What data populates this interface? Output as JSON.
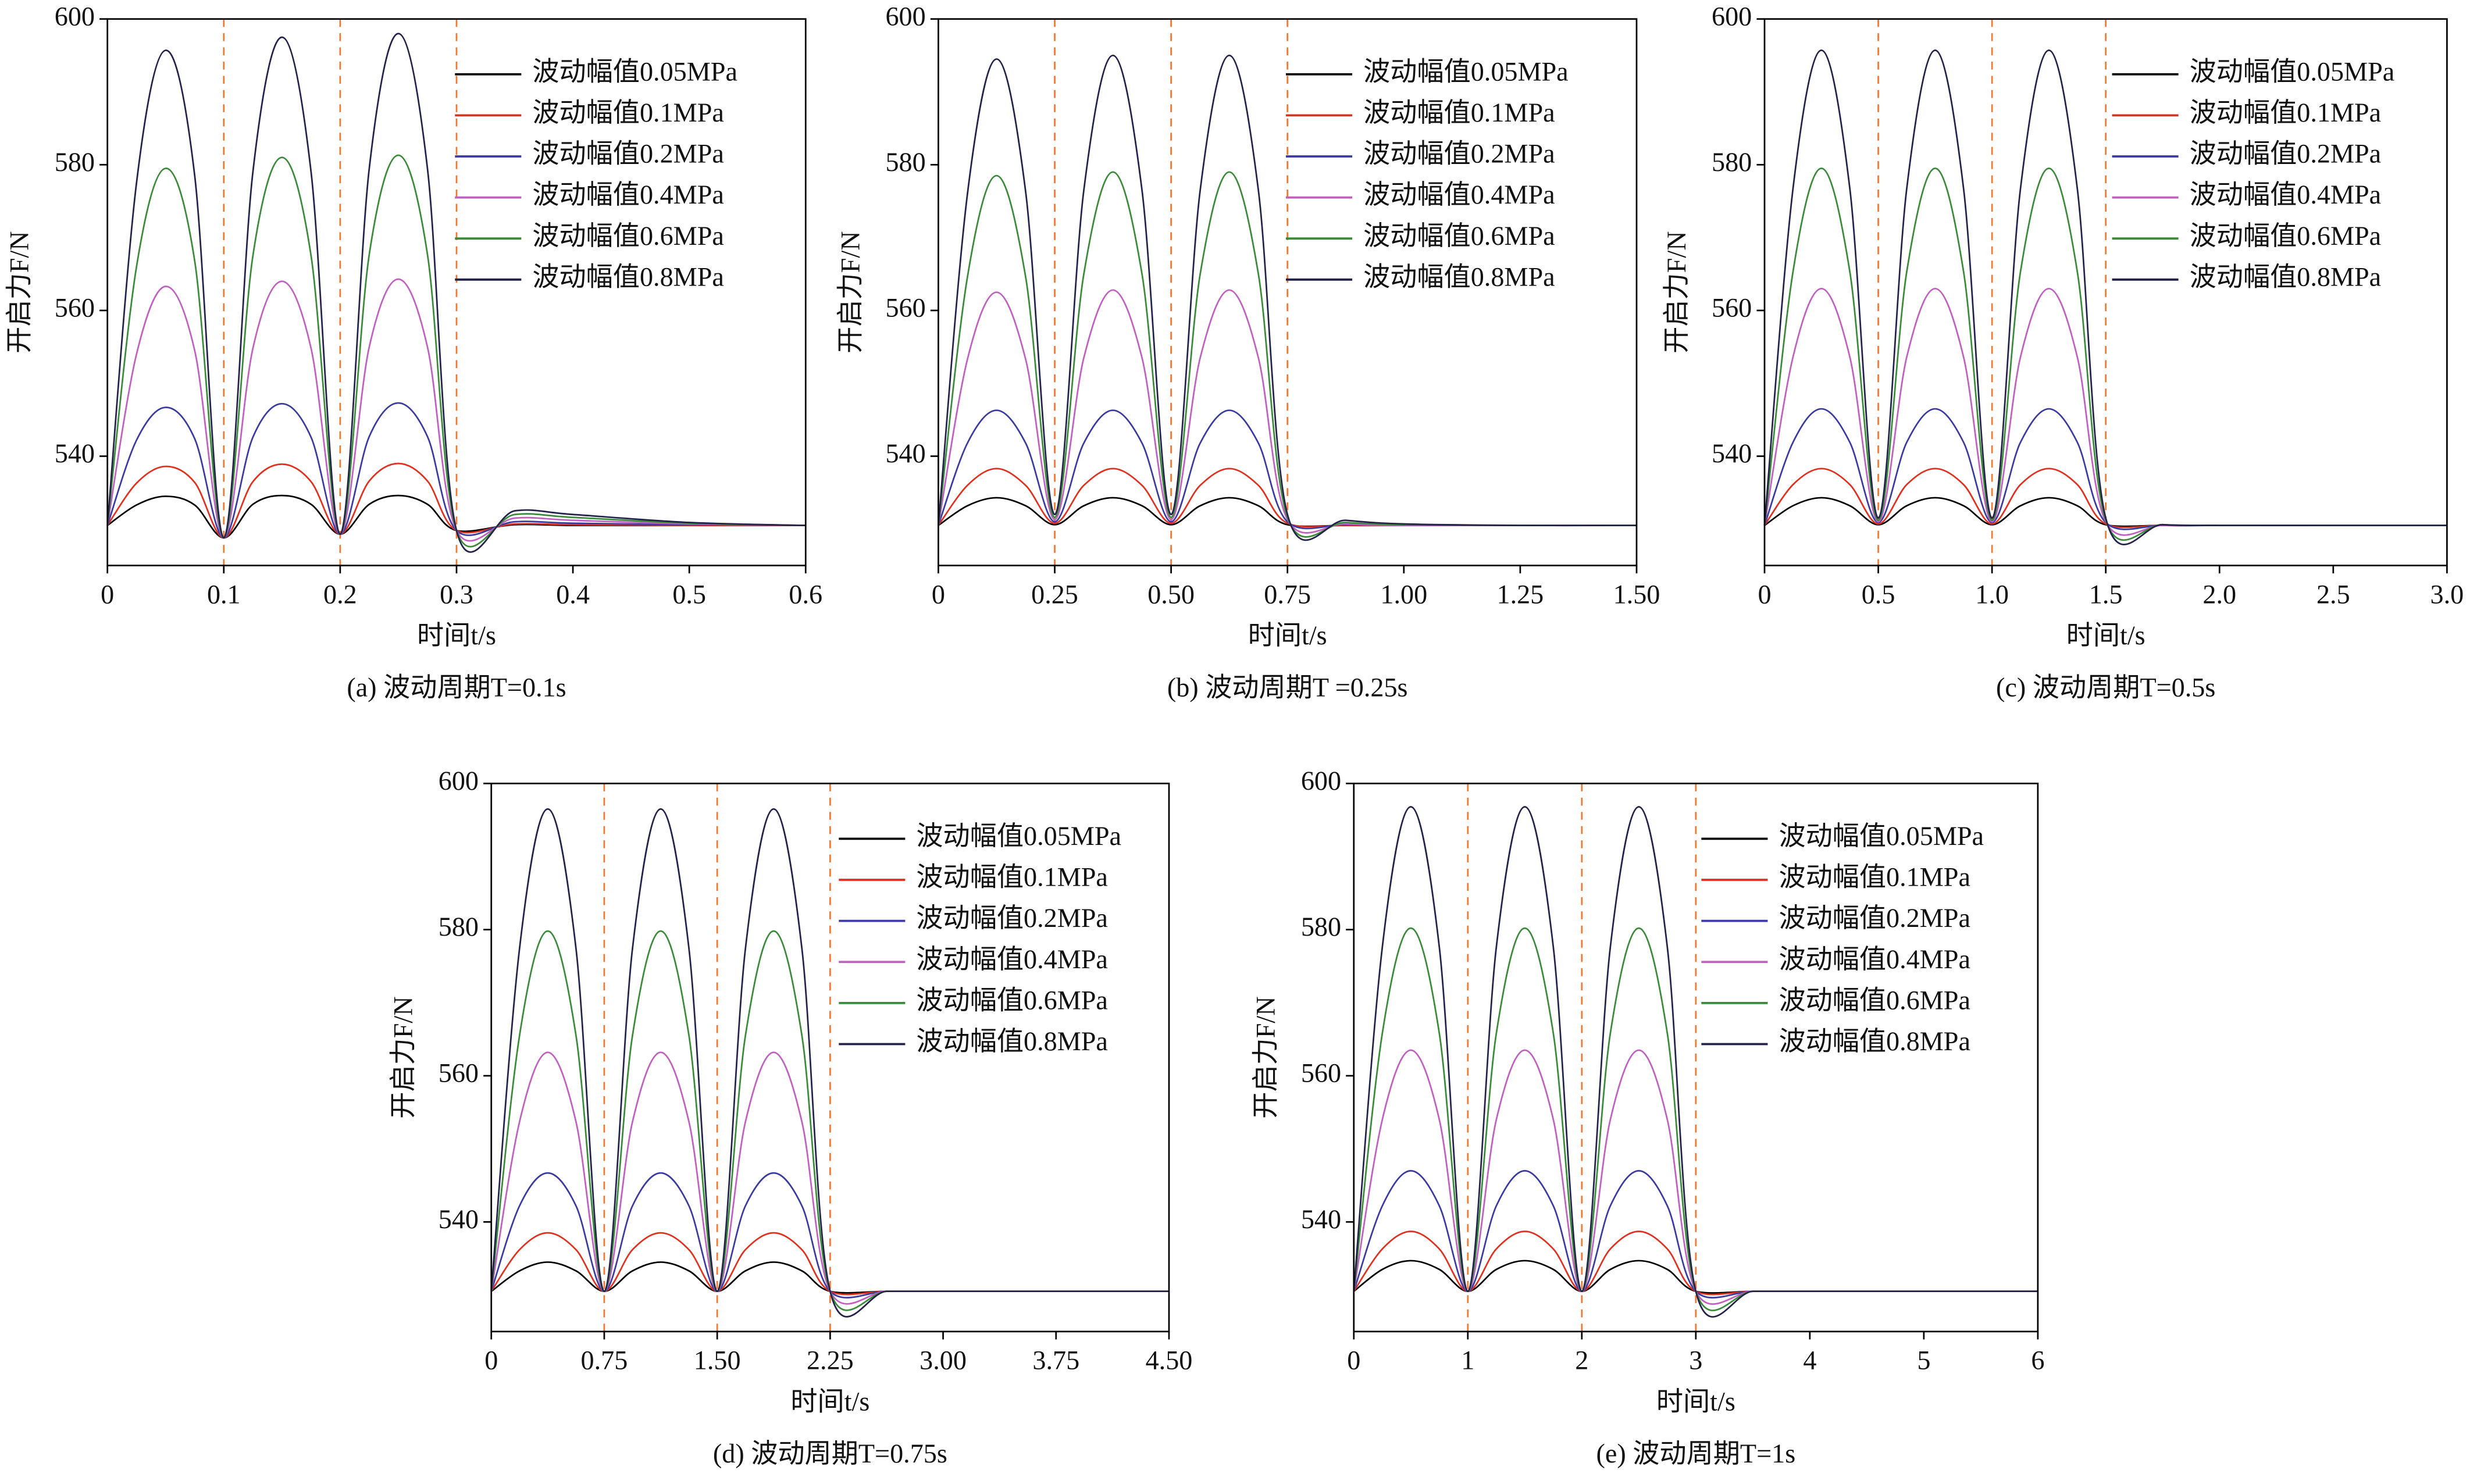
{
  "chart_data": [
    {
      "type": "line",
      "caption": "(a) 波动周期T=0.1s",
      "xlabel": "时间t/s",
      "ylabel": "开启力F/N",
      "legend": "upper right",
      "x": [
        0,
        0.025,
        0.05,
        0.075,
        0.1,
        0.125,
        0.15,
        0.175,
        0.2,
        0.225,
        0.25,
        0.275,
        0.3,
        0.35,
        0.4,
        0.5,
        0.6
      ],
      "xlim": [
        0,
        0.6
      ],
      "xticks": [
        0,
        0.1,
        0.2,
        0.3,
        0.4,
        0.5,
        0.6
      ],
      "ylim": [
        525,
        600
      ],
      "yticks": [
        540,
        560,
        580,
        600
      ],
      "markers": [
        0.1,
        0.2,
        0.3
      ],
      "marker_color": "#f07830",
      "series": [
        {
          "name": "波动幅值0.05MPa",
          "color": "#000000",
          "values": [
            530.5,
            533.3,
            534.5,
            533.3,
            528.8,
            533.4,
            534.6,
            533.4,
            529.3,
            533.4,
            534.6,
            533.4,
            529.8,
            530.6,
            530.5,
            530.5,
            530.5
          ]
        },
        {
          "name": "波动幅值0.1MPa",
          "color": "#e0301e",
          "values": [
            530.5,
            536.3,
            538.6,
            536.4,
            528.8,
            536.5,
            538.9,
            536.5,
            529.3,
            536.6,
            539,
            536.6,
            529.8,
            530.7,
            530.6,
            530.5,
            530.5
          ]
        },
        {
          "name": "波动幅值0.2MPa",
          "color": "#3a3aa0",
          "values": [
            530.5,
            542.2,
            546.7,
            542.4,
            528.8,
            542.6,
            547.2,
            542.6,
            529.3,
            542.7,
            547.3,
            542.7,
            529.8,
            531,
            530.8,
            530.6,
            530.5
          ]
        },
        {
          "name": "波动幅值0.4MPa",
          "color": "#c060c0",
          "values": [
            530.5,
            554,
            563.3,
            554.5,
            528.8,
            554.8,
            564,
            554.8,
            529.3,
            555,
            564.3,
            555,
            529.8,
            531.5,
            531.2,
            530.7,
            530.5
          ]
        },
        {
          "name": "波动幅值0.6MPa",
          "color": "#3a8a3a",
          "values": [
            530.5,
            566,
            579.5,
            566.8,
            528.8,
            567.5,
            581,
            567.5,
            529.3,
            567.7,
            581.3,
            567.7,
            529.8,
            532,
            531.6,
            530.8,
            530.5
          ]
        },
        {
          "name": "波动幅值0.8MPa",
          "color": "#22224a",
          "values": [
            530.5,
            577.5,
            595.7,
            578.5,
            528.8,
            579,
            597.5,
            579,
            529.3,
            579.5,
            598,
            579.5,
            529.8,
            532.5,
            532,
            530.9,
            530.5
          ]
        }
      ]
    },
    {
      "type": "line",
      "caption": "(b) 波动周期T =0.25s",
      "xlabel": "时间t/s",
      "ylabel": "开启力F/N",
      "legend": "upper right",
      "x": [
        0,
        0.0625,
        0.125,
        0.1875,
        0.25,
        0.3125,
        0.375,
        0.4375,
        0.5,
        0.5625,
        0.625,
        0.6875,
        0.75,
        0.875,
        1,
        1.25,
        1.5
      ],
      "xlim": [
        0,
        1.5
      ],
      "xticks": [
        0,
        0.25,
        {
          "value": 0.5,
          "label": "0.50"
        },
        0.75,
        {
          "value": 1,
          "label": "1.00"
        },
        1.25,
        {
          "value": 1.5,
          "label": "1.50"
        }
      ],
      "ylim": [
        525,
        600
      ],
      "yticks": [
        540,
        560,
        580,
        600
      ],
      "markers": [
        0.25,
        0.5,
        0.75
      ],
      "marker_color": "#f07830",
      "series": [
        {
          "name": "波动幅值0.05MPa",
          "color": "#000000",
          "values": [
            530.5,
            533.2,
            534.3,
            533.2,
            530.6,
            533.2,
            534.3,
            533.2,
            530.6,
            533.2,
            534.3,
            533.2,
            530.6,
            530.5,
            530.5,
            530.5,
            530.5
          ]
        },
        {
          "name": "波动幅值0.1MPa",
          "color": "#e0301e",
          "values": [
            530.5,
            536,
            538.3,
            536,
            530.8,
            536,
            538.3,
            536,
            530.8,
            536,
            538.3,
            536,
            530.8,
            530.5,
            530.5,
            530.5,
            530.5
          ]
        },
        {
          "name": "波动幅值0.2MPa",
          "color": "#3a3aa0",
          "values": [
            530.5,
            541.8,
            546.3,
            541.8,
            531,
            541.8,
            546.3,
            541.8,
            531,
            541.8,
            546.3,
            541.8,
            531,
            530.6,
            530.5,
            530.5,
            530.5
          ]
        },
        {
          "name": "波动幅值0.4MPa",
          "color": "#c060c0",
          "values": [
            530.5,
            553.3,
            562.5,
            553.3,
            531.3,
            553.5,
            562.8,
            553.5,
            531.3,
            553.5,
            562.8,
            553.5,
            531.3,
            530.7,
            530.5,
            530.5,
            530.5
          ]
        },
        {
          "name": "波动幅值0.6MPa",
          "color": "#3a8a3a",
          "values": [
            530.5,
            564.6,
            578.5,
            564.6,
            531.6,
            565,
            579,
            565,
            531.6,
            565,
            579,
            565,
            531.6,
            530.9,
            530.6,
            530.5,
            530.5
          ]
        },
        {
          "name": "波动幅值0.8MPa",
          "color": "#22224a",
          "values": [
            530.5,
            576,
            594.5,
            576.3,
            532,
            576.5,
            595,
            576.5,
            532,
            576.5,
            595,
            576.5,
            532,
            531.2,
            530.7,
            530.5,
            530.5
          ]
        }
      ]
    },
    {
      "type": "line",
      "caption": "(c) 波动周期T=0.5s",
      "xlabel": "时间t/s",
      "ylabel": "开启力F/N",
      "legend": "upper right",
      "x": [
        0,
        0.125,
        0.25,
        0.375,
        0.5,
        0.625,
        0.75,
        0.875,
        1,
        1.125,
        1.25,
        1.375,
        1.5,
        1.75,
        2,
        2.5,
        3
      ],
      "xlim": [
        0,
        3
      ],
      "xticks": [
        0,
        0.5,
        {
          "value": 1,
          "label": "1.0"
        },
        1.5,
        {
          "value": 2,
          "label": "2.0"
        },
        2.5,
        {
          "value": 3,
          "label": "3.0"
        }
      ],
      "ylim": [
        525,
        600
      ],
      "yticks": [
        540,
        560,
        580,
        600
      ],
      "markers": [
        0.5,
        1,
        1.5
      ],
      "marker_color": "#f07830",
      "series": [
        {
          "name": "波动幅值0.05MPa",
          "color": "#000000",
          "values": [
            530.5,
            533.2,
            534.3,
            533.2,
            530.6,
            533.2,
            534.3,
            533.2,
            530.6,
            533.2,
            534.3,
            533.2,
            530.6,
            530.5,
            530.5,
            530.5,
            530.5
          ]
        },
        {
          "name": "波动幅值0.1MPa",
          "color": "#e0301e",
          "values": [
            530.5,
            536.1,
            538.3,
            536.1,
            530.7,
            536.1,
            538.3,
            536.1,
            530.7,
            536.1,
            538.3,
            536.1,
            530.7,
            530.5,
            530.5,
            530.5,
            530.5
          ]
        },
        {
          "name": "波动幅值0.2MPa",
          "color": "#3a3aa0",
          "values": [
            530.5,
            541.9,
            546.5,
            541.9,
            530.9,
            541.9,
            546.5,
            541.9,
            530.9,
            541.9,
            546.5,
            541.9,
            530.9,
            530.5,
            530.5,
            530.5,
            530.5
          ]
        },
        {
          "name": "波动幅值0.4MPa",
          "color": "#c060c0",
          "values": [
            530.5,
            553.6,
            563,
            553.6,
            531,
            553.6,
            563,
            553.6,
            531,
            553.6,
            563,
            553.6,
            531,
            530.5,
            530.5,
            530.5,
            530.5
          ]
        },
        {
          "name": "波动幅值0.6MPa",
          "color": "#3a8a3a",
          "values": [
            530.5,
            565.3,
            579.5,
            565.3,
            531.2,
            565.3,
            579.5,
            565.3,
            531.2,
            565.3,
            579.5,
            565.3,
            531.2,
            530.6,
            530.5,
            530.5,
            530.5
          ]
        },
        {
          "name": "波动幅值0.8MPa",
          "color": "#22224a",
          "values": [
            530.5,
            576.7,
            595.7,
            576.7,
            531.5,
            576.7,
            595.7,
            576.7,
            531.5,
            576.7,
            595.7,
            576.7,
            531.5,
            530.6,
            530.5,
            530.5,
            530.5
          ]
        }
      ]
    },
    {
      "type": "line",
      "caption": "(d) 波动周期T=0.75s",
      "xlabel": "时间t/s",
      "ylabel": "开启力F/N",
      "legend": "upper right",
      "x": [
        0,
        0.1875,
        0.375,
        0.5625,
        0.75,
        0.9375,
        1.125,
        1.3125,
        1.5,
        1.6875,
        1.875,
        2.0625,
        2.25,
        2.625,
        3,
        3.75,
        4.5
      ],
      "xlim": [
        0,
        4.5
      ],
      "xticks": [
        0,
        0.75,
        {
          "value": 1.5,
          "label": "1.50"
        },
        2.25,
        {
          "value": 3,
          "label": "3.00"
        },
        3.75,
        {
          "value": 4.5,
          "label": "4.50"
        }
      ],
      "ylim": [
        525,
        600
      ],
      "yticks": [
        540,
        560,
        580,
        600
      ],
      "markers": [
        0.75,
        1.5,
        2.25
      ],
      "marker_color": "#f07830",
      "series": [
        {
          "name": "波动幅值0.05MPa",
          "color": "#000000",
          "values": [
            530.5,
            533.3,
            534.5,
            533.3,
            530.5,
            533.3,
            534.5,
            533.3,
            530.5,
            533.3,
            534.5,
            533.3,
            530.5,
            530.5,
            530.5,
            530.5,
            530.5
          ]
        },
        {
          "name": "波动幅值0.1MPa",
          "color": "#e0301e",
          "values": [
            530.5,
            536.2,
            538.5,
            536.2,
            530.5,
            536.2,
            538.5,
            536.2,
            530.5,
            536.2,
            538.5,
            536.2,
            530.5,
            530.5,
            530.5,
            530.5,
            530.5
          ]
        },
        {
          "name": "波动幅值0.2MPa",
          "color": "#3a3aa0",
          "values": [
            530.5,
            542.2,
            546.7,
            542.2,
            530.5,
            542.2,
            546.7,
            542.2,
            530.5,
            542.2,
            546.7,
            542.2,
            530.5,
            530.5,
            530.5,
            530.5,
            530.5
          ]
        },
        {
          "name": "波动幅值0.4MPa",
          "color": "#c060c0",
          "values": [
            530.5,
            553.7,
            563.2,
            553.7,
            530.5,
            553.7,
            563.2,
            553.7,
            530.5,
            553.7,
            563.2,
            553.7,
            530.5,
            530.5,
            530.5,
            530.5,
            530.5
          ]
        },
        {
          "name": "波动幅值0.6MPa",
          "color": "#3a8a3a",
          "values": [
            530.5,
            565.5,
            579.8,
            565.5,
            530.5,
            565.5,
            579.8,
            565.5,
            530.5,
            565.5,
            579.8,
            565.5,
            530.5,
            530.5,
            530.5,
            530.5,
            530.5
          ]
        },
        {
          "name": "波动幅值0.8MPa",
          "color": "#22224a",
          "values": [
            530.5,
            577.4,
            596.5,
            577.4,
            530.5,
            577.4,
            596.5,
            577.4,
            530.5,
            577.4,
            596.5,
            577.4,
            530.5,
            530.5,
            530.5,
            530.5,
            530.5
          ]
        }
      ]
    },
    {
      "type": "line",
      "caption": "(e) 波动周期T=1s",
      "xlabel": "时间t/s",
      "ylabel": "开启力F/N",
      "legend": "upper right",
      "x": [
        0,
        0.25,
        0.5,
        0.75,
        1,
        1.25,
        1.5,
        1.75,
        2,
        2.25,
        2.5,
        2.75,
        3,
        3.5,
        4,
        5,
        6
      ],
      "xlim": [
        0,
        6
      ],
      "xticks": [
        0,
        1,
        2,
        3,
        4,
        5,
        6
      ],
      "ylim": [
        525,
        600
      ],
      "yticks": [
        540,
        560,
        580,
        600
      ],
      "markers": [
        1,
        2,
        3
      ],
      "marker_color": "#f07830",
      "series": [
        {
          "name": "波动幅值0.05MPa",
          "color": "#000000",
          "values": [
            530.5,
            533.5,
            534.7,
            533.5,
            530.5,
            533.5,
            534.7,
            533.5,
            530.5,
            533.5,
            534.7,
            533.5,
            530.5,
            530.5,
            530.5,
            530.5,
            530.5
          ]
        },
        {
          "name": "波动幅值0.1MPa",
          "color": "#e0301e",
          "values": [
            530.5,
            536.3,
            538.7,
            536.3,
            530.5,
            536.3,
            538.7,
            536.3,
            530.5,
            536.3,
            538.7,
            536.3,
            530.5,
            530.5,
            530.5,
            530.5,
            530.5
          ]
        },
        {
          "name": "波动幅值0.2MPa",
          "color": "#3a3aa0",
          "values": [
            530.5,
            542.2,
            547,
            542.2,
            530.5,
            542.2,
            547,
            542.2,
            530.5,
            542.2,
            547,
            542.2,
            530.5,
            530.5,
            530.5,
            530.5,
            530.5
          ]
        },
        {
          "name": "波动幅值0.4MPa",
          "color": "#c060c0",
          "values": [
            530.5,
            554,
            563.5,
            554,
            530.5,
            554,
            563.5,
            554,
            530.5,
            554,
            563.5,
            554,
            530.5,
            530.5,
            530.5,
            530.5,
            530.5
          ]
        },
        {
          "name": "波动幅值0.6MPa",
          "color": "#3a8a3a",
          "values": [
            530.5,
            565.8,
            580.2,
            565.8,
            530.5,
            565.8,
            580.2,
            565.8,
            530.5,
            565.8,
            580.2,
            565.8,
            530.5,
            530.5,
            530.5,
            530.5,
            530.5
          ]
        },
        {
          "name": "波动幅值0.8MPa",
          "color": "#22224a",
          "values": [
            530.5,
            577.6,
            596.8,
            577.6,
            530.5,
            577.6,
            596.8,
            577.6,
            530.5,
            577.6,
            596.8,
            577.6,
            530.5,
            530.5,
            530.5,
            530.5,
            530.5
          ]
        }
      ]
    }
  ]
}
